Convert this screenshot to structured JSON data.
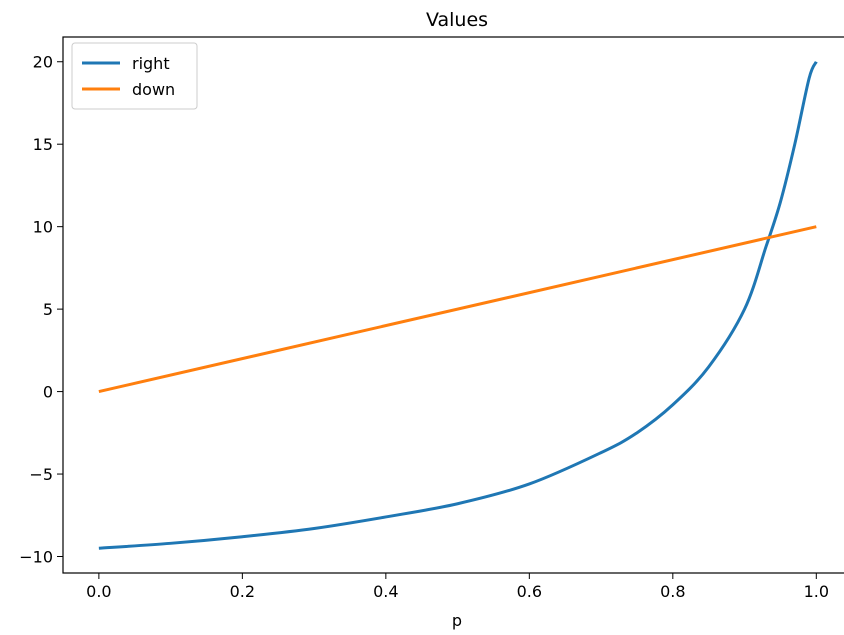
{
  "chart_data": {
    "type": "line",
    "title": "Values",
    "xlabel": "p",
    "ylabel": "",
    "xlim": [
      -0.05,
      1.04
    ],
    "ylim": [
      -11.0,
      21.5
    ],
    "xticks": [
      0.0,
      0.2,
      0.4,
      0.6,
      0.8,
      1.0
    ],
    "xtick_labels": [
      "0.0",
      "0.2",
      "0.4",
      "0.6",
      "0.8",
      "1.0"
    ],
    "yticks": [
      -10,
      -5,
      0,
      5,
      10,
      15,
      20
    ],
    "ytick_labels": [
      "−10",
      "−5",
      "0",
      "5",
      "10",
      "15",
      "20"
    ],
    "grid": false,
    "legend": {
      "placement": "upper-left"
    },
    "series": [
      {
        "name": "right",
        "color": "#1f77b4",
        "x": [
          0.0,
          0.1,
          0.2,
          0.3,
          0.4,
          0.5,
          0.6,
          0.7,
          0.75,
          0.8,
          0.85,
          0.9,
          0.93,
          0.95,
          0.97,
          0.99,
          1.0
        ],
        "y": [
          -9.5,
          -9.2,
          -8.8,
          -8.3,
          -7.6,
          -6.8,
          -5.6,
          -3.7,
          -2.5,
          -0.8,
          1.5,
          5.0,
          8.8,
          11.5,
          15.0,
          19.0,
          20.0
        ]
      },
      {
        "name": "down",
        "color": "#ff7f0e",
        "x": [
          0.0,
          1.0
        ],
        "y": [
          0.0,
          10.0
        ]
      }
    ]
  }
}
